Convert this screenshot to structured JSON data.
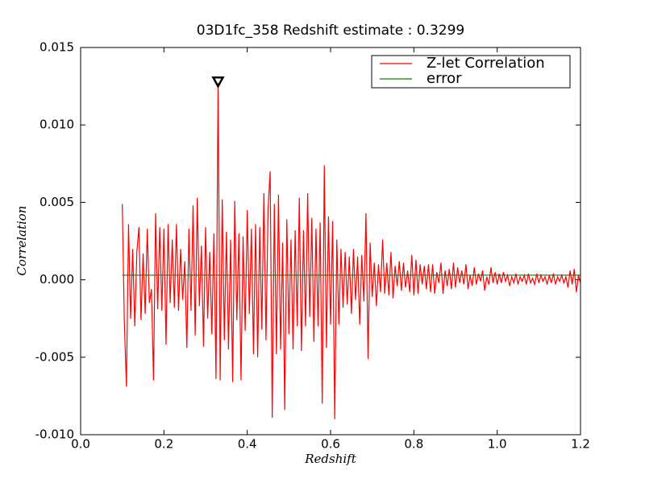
{
  "chart_data": {
    "type": "line",
    "title": "03D1fc_358 Redshift estimate : 0.3299",
    "xlabel": "Redshift",
    "ylabel": "Correlation",
    "xlim": [
      0.0,
      1.2
    ],
    "ylim": [
      -0.01,
      0.015
    ],
    "xticks": [
      {
        "value": 0.0,
        "label": "0.0"
      },
      0.2,
      0.4,
      0.6,
      0.8,
      {
        "value": 1.0,
        "label": "1.0"
      },
      1.2
    ],
    "yticks": [
      {
        "value": -0.01,
        "label": "-0.010"
      },
      -0.005,
      {
        "value": 0.0,
        "label": "0.000"
      },
      0.005,
      {
        "value": 0.01,
        "label": "0.010"
      },
      0.015
    ],
    "grid": false,
    "legend": "upper right",
    "series": [
      {
        "name": "Z-let Correlation",
        "color": "#ff0000",
        "x": [
          0.1,
          0.105,
          0.11,
          0.115,
          0.12,
          0.125,
          0.13,
          0.135,
          0.14,
          0.145,
          0.15,
          0.155,
          0.16,
          0.165,
          0.17,
          0.175,
          0.18,
          0.185,
          0.19,
          0.195,
          0.2,
          0.205,
          0.21,
          0.215,
          0.22,
          0.225,
          0.23,
          0.235,
          0.24,
          0.245,
          0.25,
          0.255,
          0.26,
          0.265,
          0.27,
          0.275,
          0.28,
          0.285,
          0.29,
          0.295,
          0.3,
          0.305,
          0.31,
          0.315,
          0.32,
          0.325,
          0.33,
          0.335,
          0.34,
          0.345,
          0.35,
          0.355,
          0.36,
          0.365,
          0.37,
          0.375,
          0.38,
          0.385,
          0.39,
          0.395,
          0.4,
          0.405,
          0.41,
          0.415,
          0.42,
          0.425,
          0.43,
          0.435,
          0.44,
          0.445,
          0.45,
          0.455,
          0.46,
          0.465,
          0.47,
          0.475,
          0.48,
          0.485,
          0.49,
          0.495,
          0.5,
          0.505,
          0.51,
          0.515,
          0.52,
          0.525,
          0.53,
          0.535,
          0.54,
          0.545,
          0.55,
          0.555,
          0.56,
          0.565,
          0.57,
          0.575,
          0.58,
          0.585,
          0.59,
          0.595,
          0.6,
          0.605,
          0.61,
          0.615,
          0.62,
          0.625,
          0.63,
          0.635,
          0.64,
          0.645,
          0.65,
          0.655,
          0.66,
          0.665,
          0.67,
          0.675,
          0.68,
          0.685,
          0.69,
          0.695,
          0.7,
          0.705,
          0.71,
          0.715,
          0.72,
          0.725,
          0.73,
          0.735,
          0.74,
          0.745,
          0.75,
          0.755,
          0.76,
          0.765,
          0.77,
          0.775,
          0.78,
          0.785,
          0.79,
          0.795,
          0.8,
          0.805,
          0.81,
          0.815,
          0.82,
          0.825,
          0.83,
          0.835,
          0.84,
          0.845,
          0.85,
          0.855,
          0.86,
          0.865,
          0.87,
          0.875,
          0.88,
          0.885,
          0.89,
          0.895,
          0.9,
          0.905,
          0.91,
          0.915,
          0.92,
          0.925,
          0.93,
          0.935,
          0.94,
          0.945,
          0.95,
          0.955,
          0.96,
          0.965,
          0.97,
          0.975,
          0.98,
          0.985,
          0.99,
          0.995,
          1.0,
          1.005,
          1.01,
          1.015,
          1.02,
          1.025,
          1.03,
          1.035,
          1.04,
          1.045,
          1.05,
          1.055,
          1.06,
          1.065,
          1.07,
          1.075,
          1.08,
          1.085,
          1.09,
          1.095,
          1.1,
          1.105,
          1.11,
          1.115,
          1.12,
          1.125,
          1.13,
          1.135,
          1.14,
          1.145,
          1.15,
          1.155,
          1.16,
          1.165,
          1.17,
          1.175,
          1.18,
          1.185,
          1.19,
          1.195,
          1.2
        ],
        "values": [
          0.0049,
          -0.0028,
          -0.0069,
          0.0036,
          -0.0025,
          0.002,
          -0.003,
          0.0018,
          0.0034,
          -0.0026,
          0.0017,
          -0.0022,
          0.0033,
          -0.0015,
          -0.0006,
          -0.0065,
          0.0043,
          -0.0019,
          0.0034,
          -0.002,
          0.0033,
          -0.0042,
          0.0036,
          -0.0015,
          0.0026,
          -0.0018,
          0.0036,
          -0.002,
          0.002,
          -0.0013,
          0.0012,
          -0.0044,
          0.0033,
          -0.002,
          0.0048,
          -0.0036,
          0.0053,
          -0.0017,
          0.0022,
          -0.0043,
          0.0034,
          -0.0025,
          0.0018,
          -0.0035,
          0.003,
          -0.0064,
          0.0127,
          -0.0065,
          0.0052,
          -0.0039,
          0.0031,
          -0.0045,
          0.0026,
          -0.0066,
          0.0051,
          -0.0026,
          0.003,
          -0.0065,
          0.0028,
          -0.0033,
          0.0045,
          -0.0022,
          0.0033,
          -0.0048,
          0.0036,
          -0.005,
          0.0034,
          -0.0032,
          0.0056,
          -0.0039,
          0.0046,
          0.007,
          -0.0089,
          0.0049,
          -0.0048,
          0.0055,
          -0.0045,
          0.0024,
          -0.0084,
          0.0039,
          -0.0035,
          0.0026,
          -0.0045,
          0.0032,
          -0.003,
          0.0053,
          -0.0046,
          0.0032,
          -0.003,
          0.0056,
          -0.0024,
          0.004,
          -0.004,
          0.0033,
          -0.003,
          0.0037,
          -0.008,
          0.0074,
          -0.0044,
          0.0041,
          -0.0029,
          0.0038,
          -0.009,
          0.0026,
          -0.0029,
          0.002,
          -0.0018,
          0.0018,
          -0.0016,
          0.0015,
          -0.0022,
          0.002,
          -0.0013,
          0.0015,
          -0.0029,
          0.0016,
          -0.0014,
          0.0043,
          -0.0051,
          0.0024,
          -0.0011,
          0.0011,
          -0.0017,
          0.001,
          -0.0008,
          0.0026,
          -0.0009,
          0.0011,
          -0.001,
          0.0018,
          -0.0012,
          0.0009,
          -0.0004,
          0.0012,
          -0.0007,
          0.0011,
          -0.0005,
          0.0006,
          -0.0008,
          0.0016,
          -0.001,
          0.0013,
          -0.0009,
          0.001,
          -0.0003,
          0.0009,
          -0.0006,
          0.001,
          -0.0008,
          0.001,
          -0.0009,
          0.0005,
          -0.0002,
          0.0011,
          -0.0009,
          0.0006,
          -0.0004,
          0.0007,
          -0.0006,
          0.0011,
          -0.0005,
          0.0008,
          -0.0002,
          0.0006,
          -0.0003,
          0.001,
          -0.0006,
          0.0003,
          -0.0004,
          0.0008,
          -0.0003,
          0.0004,
          -0.0001,
          0.0006,
          -0.0007,
          0.0002,
          -0.0003,
          0.0008,
          -0.0002,
          0.0005,
          -0.0003,
          0.0004,
          -0.0002,
          0.0005,
          -0.0001,
          0.0003,
          -0.0004,
          0.0002,
          -0.0002,
          0.0004,
          -0.0003,
          0.0002,
          -0.0001,
          0.0003,
          -0.0003,
          0.0004,
          -0.0002,
          0.0001,
          -0.0003,
          0.0004,
          -0.0002,
          0.0003,
          -0.0001,
          0.0002,
          -0.0003,
          0.0003,
          -0.0002,
          0.0004,
          -0.0003,
          0.0002,
          -0.0001,
          0.0003,
          -0.0002,
          0.0002,
          -0.0005,
          0.0006,
          -0.0003,
          0.0007,
          -0.0008,
          0.0003,
          -0.0002
        ]
      },
      {
        "name": "error",
        "color": "#008000",
        "x": [
          0.1,
          1.2
        ],
        "values": [
          0.0003,
          0.0003
        ]
      }
    ],
    "peak_marker": {
      "x": 0.3299,
      "y": 0.0127
    }
  }
}
